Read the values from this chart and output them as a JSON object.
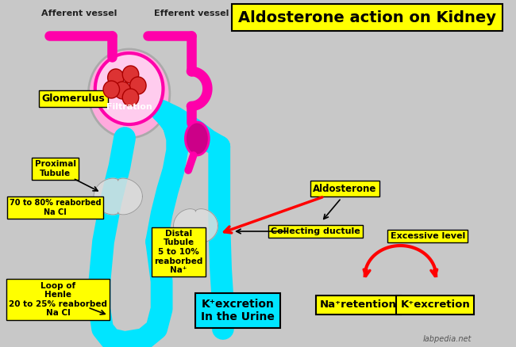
{
  "bg_color": "#c8c8c8",
  "title": "Aldosterone action on Kidney",
  "watermark": "labpedia.net",
  "labels": {
    "afferent": "Afferent vessel",
    "efferent": "Efferent vessel",
    "glomerulus": "Glomerulus",
    "filtration": "Filtration",
    "proximal_tubule": "Proximal\nTubule",
    "proximal_reabs": "70 to 80% reaborbed\nNa Cl",
    "distal_tubule": "Distal\nTubule\n5 to 10%\nreaborbed\nNa⁺",
    "loop_henle": "Loop of\nHenle\n20 to 25% reaborbed\nNa Cl",
    "k_excretion_box": "K⁺excretion\nIn the Urine",
    "aldosterone": "Aldosterone",
    "collecting": "Collecting ductule",
    "excessive": "Excessive level",
    "na_retention": "Na⁺retention",
    "k_excretion2": "K⁺excretion"
  },
  "cyan_color": "#00e5ff",
  "magenta_color": "#ff00aa",
  "yellow_box": "yellow",
  "red_color": "#ff0000",
  "dark_magenta": "#cc0088",
  "title_fontsize": 14
}
